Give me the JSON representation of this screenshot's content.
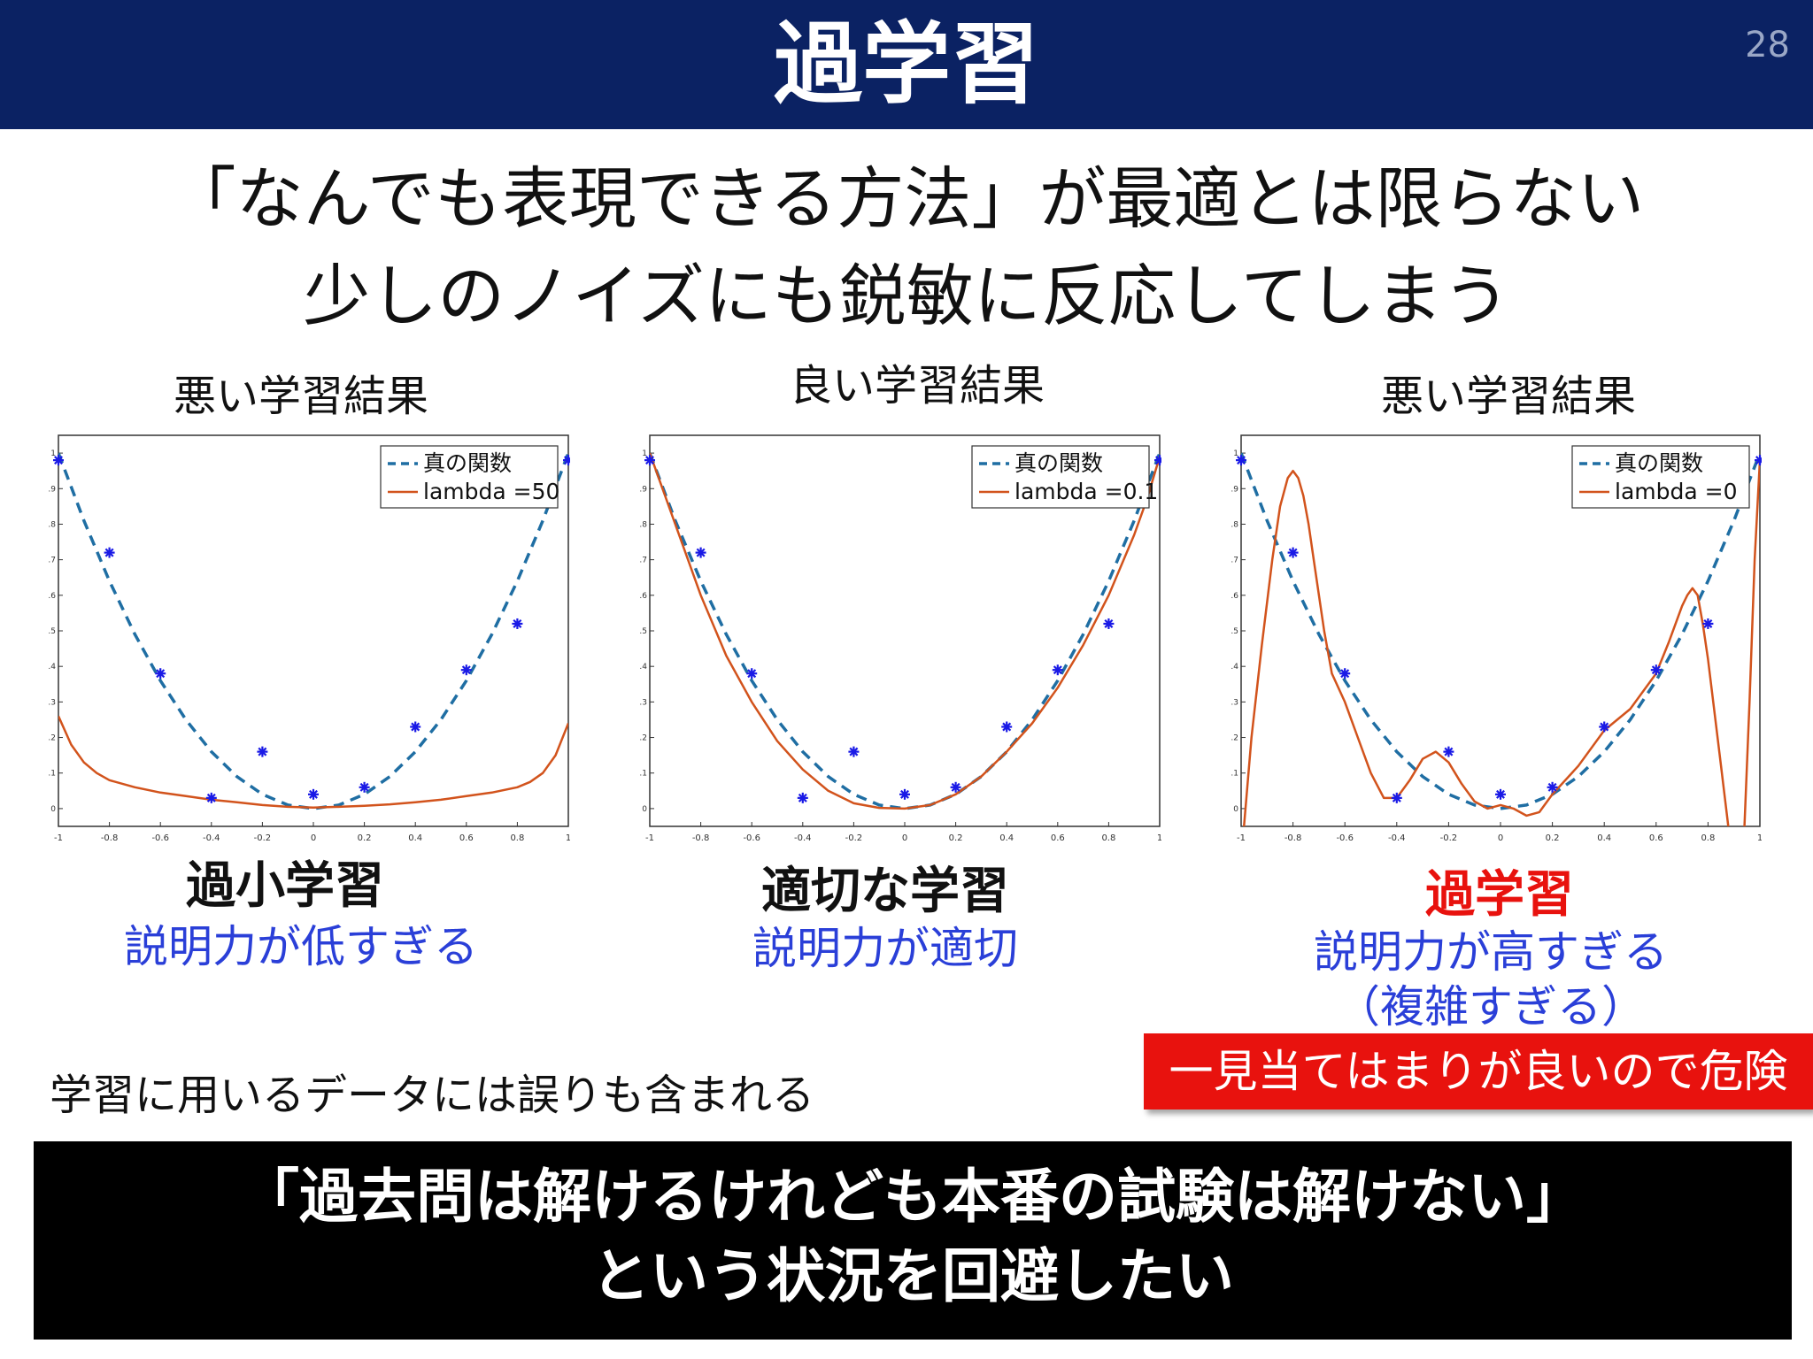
{
  "header": {
    "title": "過学習",
    "page_number": "28"
  },
  "subtitle": {
    "line1": "「なんでも表現できる方法」が最適とは限らない",
    "line2": "少しのノイズにも鋭敏に反応してしまう"
  },
  "panels": [
    {
      "caption": "悪い学習結果",
      "result_title": "過小学習",
      "result_desc": [
        "説明力が低すぎる"
      ],
      "title_color": "#111111"
    },
    {
      "caption": "良い学習結果",
      "result_title": "適切な学習",
      "result_desc": [
        "説明力が適切"
      ],
      "title_color": "#111111"
    },
    {
      "caption": "悪い学習結果",
      "result_title": "過学習",
      "result_desc": [
        "説明力が高すぎる",
        "（複雑すぎる）"
      ],
      "title_color": "#e8120e"
    }
  ],
  "warning": "一見当てはまりが良いので危険",
  "note": "学習に用いるデータには誤りも含まれる",
  "bottom": {
    "line1": "「過去問は解けるけれども本番の試験は解けない」",
    "line2": "という状況を回避したい"
  },
  "colors": {
    "header_bg": "#0b2263",
    "true_function": "#1f6ea3",
    "fit_curve": "#d2531c",
    "data_points": "#1a1ae6",
    "desc_text": "#2a3fd8",
    "warning_bg": "#e8120e"
  },
  "chart_data": [
    {
      "type": "line",
      "xlim": [
        -1,
        1
      ],
      "ylim": [
        -0.05,
        1.05
      ],
      "xticks": [
        "-1",
        "-0.8",
        "-0.6",
        "-0.4",
        "-0.2",
        "0",
        "0.2",
        "0.4",
        "0.6",
        "0.8",
        "1"
      ],
      "yticks": [
        "0",
        "0.1",
        "0.2",
        "0.3",
        "0.4",
        "0.5",
        "0.6",
        "0.7",
        "0.8",
        "0.9",
        "1"
      ],
      "legend_position": "top-right",
      "series": [
        {
          "name": "真の関数",
          "style": "dashed",
          "x": [
            -1,
            -0.9,
            -0.8,
            -0.7,
            -0.6,
            -0.5,
            -0.4,
            -0.3,
            -0.2,
            -0.1,
            0,
            0.1,
            0.2,
            0.3,
            0.4,
            0.5,
            0.6,
            0.7,
            0.8,
            0.9,
            1
          ],
          "y": [
            1,
            0.81,
            0.64,
            0.49,
            0.36,
            0.25,
            0.16,
            0.09,
            0.04,
            0.01,
            0,
            0.01,
            0.04,
            0.09,
            0.16,
            0.25,
            0.36,
            0.49,
            0.64,
            0.81,
            1
          ]
        },
        {
          "name": "lambda =50",
          "style": "solid",
          "x": [
            -1,
            -0.95,
            -0.9,
            -0.85,
            -0.8,
            -0.7,
            -0.6,
            -0.5,
            -0.4,
            -0.3,
            -0.2,
            -0.1,
            0,
            0.1,
            0.2,
            0.3,
            0.4,
            0.5,
            0.6,
            0.7,
            0.8,
            0.85,
            0.9,
            0.95,
            1
          ],
          "y": [
            0.26,
            0.18,
            0.13,
            0.1,
            0.08,
            0.06,
            0.045,
            0.035,
            0.025,
            0.018,
            0.01,
            0.005,
            0.003,
            0.005,
            0.008,
            0.012,
            0.018,
            0.025,
            0.035,
            0.045,
            0.06,
            0.075,
            0.1,
            0.15,
            0.24
          ]
        }
      ],
      "points": {
        "x": [
          -1,
          -0.8,
          -0.6,
          -0.4,
          -0.2,
          0,
          0.2,
          0.4,
          0.6,
          0.8,
          1
        ],
        "y": [
          0.98,
          0.72,
          0.38,
          0.03,
          0.16,
          0.04,
          0.06,
          0.23,
          0.39,
          0.52,
          0.98
        ]
      }
    },
    {
      "type": "line",
      "xlim": [
        -1,
        1
      ],
      "ylim": [
        -0.05,
        1.05
      ],
      "xticks": [
        "-1",
        "-0.8",
        "-0.6",
        "-0.4",
        "-0.2",
        "0",
        "0.2",
        "0.4",
        "0.6",
        "0.8",
        "1"
      ],
      "yticks": [
        "0",
        "0.1",
        "0.2",
        "0.3",
        "0.4",
        "0.5",
        "0.6",
        "0.7",
        "0.8",
        "0.9",
        "1"
      ],
      "legend_position": "top-right",
      "series": [
        {
          "name": "真の関数",
          "style": "dashed",
          "x": [
            -1,
            -0.9,
            -0.8,
            -0.7,
            -0.6,
            -0.5,
            -0.4,
            -0.3,
            -0.2,
            -0.1,
            0,
            0.1,
            0.2,
            0.3,
            0.4,
            0.5,
            0.6,
            0.7,
            0.8,
            0.9,
            1
          ],
          "y": [
            1,
            0.81,
            0.64,
            0.49,
            0.36,
            0.25,
            0.16,
            0.09,
            0.04,
            0.01,
            0,
            0.01,
            0.04,
            0.09,
            0.16,
            0.25,
            0.36,
            0.49,
            0.64,
            0.81,
            1
          ]
        },
        {
          "name": "lambda =0.1",
          "style": "solid",
          "x": [
            -1,
            -0.95,
            -0.9,
            -0.8,
            -0.7,
            -0.6,
            -0.5,
            -0.4,
            -0.3,
            -0.2,
            -0.1,
            0,
            0.1,
            0.2,
            0.3,
            0.4,
            0.5,
            0.6,
            0.7,
            0.8,
            0.9,
            0.95,
            1
          ],
          "y": [
            1.0,
            0.9,
            0.8,
            0.6,
            0.43,
            0.3,
            0.19,
            0.11,
            0.05,
            0.015,
            0.002,
            0.0,
            0.01,
            0.04,
            0.09,
            0.16,
            0.24,
            0.34,
            0.46,
            0.6,
            0.77,
            0.87,
            0.99
          ]
        }
      ],
      "points": {
        "x": [
          -1,
          -0.8,
          -0.6,
          -0.4,
          -0.2,
          0,
          0.2,
          0.4,
          0.6,
          0.8,
          1
        ],
        "y": [
          0.98,
          0.72,
          0.38,
          0.03,
          0.16,
          0.04,
          0.06,
          0.23,
          0.39,
          0.52,
          0.98
        ]
      }
    },
    {
      "type": "line",
      "xlim": [
        -1,
        1
      ],
      "ylim": [
        -0.05,
        1.05
      ],
      "xticks": [
        "-1",
        "-0.8",
        "-0.6",
        "-0.4",
        "-0.2",
        "0",
        "0.2",
        "0.4",
        "0.6",
        "0.8",
        "1"
      ],
      "yticks": [
        "0",
        "0.1",
        "0.2",
        "0.3",
        "0.4",
        "0.5",
        "0.6",
        "0.7",
        "0.8",
        "0.9",
        "1"
      ],
      "legend_position": "top-right",
      "series": [
        {
          "name": "真の関数",
          "style": "dashed",
          "x": [
            -1,
            -0.9,
            -0.8,
            -0.7,
            -0.6,
            -0.5,
            -0.4,
            -0.3,
            -0.2,
            -0.1,
            0,
            0.1,
            0.2,
            0.3,
            0.4,
            0.5,
            0.6,
            0.7,
            0.8,
            0.9,
            1
          ],
          "y": [
            1,
            0.81,
            0.64,
            0.49,
            0.36,
            0.25,
            0.16,
            0.09,
            0.04,
            0.01,
            0,
            0.01,
            0.04,
            0.09,
            0.16,
            0.25,
            0.36,
            0.49,
            0.64,
            0.81,
            1
          ]
        },
        {
          "name": "lambda =0",
          "style": "solid",
          "x": [
            -0.99,
            -0.96,
            -0.92,
            -0.88,
            -0.85,
            -0.82,
            -0.8,
            -0.78,
            -0.76,
            -0.74,
            -0.72,
            -0.7,
            -0.68,
            -0.65,
            -0.6,
            -0.55,
            -0.5,
            -0.45,
            -0.4,
            -0.35,
            -0.3,
            -0.25,
            -0.2,
            -0.15,
            -0.1,
            -0.05,
            0,
            0.05,
            0.1,
            0.15,
            0.2,
            0.3,
            0.4,
            0.5,
            0.6,
            0.65,
            0.7,
            0.72,
            0.74,
            0.76,
            0.78,
            0.8,
            0.82,
            0.85,
            0.88,
            0.9,
            0.92,
            0.94,
            0.96,
            0.98,
            1.0
          ],
          "y": [
            -0.06,
            0.2,
            0.46,
            0.7,
            0.85,
            0.93,
            0.95,
            0.93,
            0.88,
            0.8,
            0.7,
            0.6,
            0.5,
            0.38,
            0.3,
            0.2,
            0.1,
            0.03,
            0.03,
            0.08,
            0.14,
            0.16,
            0.13,
            0.07,
            0.02,
            0.0,
            0.01,
            0.0,
            -0.02,
            -0.01,
            0.04,
            0.12,
            0.22,
            0.28,
            0.38,
            0.47,
            0.57,
            0.6,
            0.62,
            0.6,
            0.52,
            0.42,
            0.3,
            0.12,
            -0.06,
            -0.06,
            -0.06,
            -0.06,
            0.3,
            0.7,
            0.98
          ]
        }
      ],
      "points": {
        "x": [
          -1,
          -0.8,
          -0.6,
          -0.4,
          -0.2,
          0,
          0.2,
          0.4,
          0.6,
          0.8,
          1
        ],
        "y": [
          0.98,
          0.72,
          0.38,
          0.03,
          0.16,
          0.04,
          0.06,
          0.23,
          0.39,
          0.52,
          0.98
        ]
      }
    }
  ]
}
